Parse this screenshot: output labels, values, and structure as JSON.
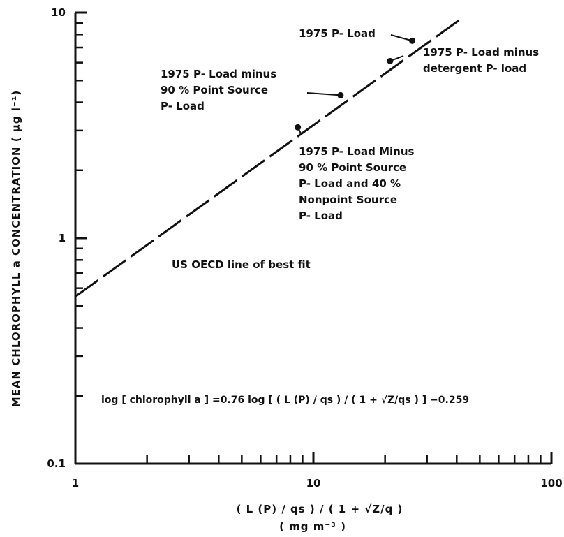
{
  "chart_data": {
    "type": "line",
    "x_scale": "log",
    "y_scale": "log",
    "xlim": [
      1,
      100
    ],
    "ylim": [
      0.1,
      10
    ],
    "grid": false,
    "x_tick_labels": [
      {
        "value": 1,
        "label": "1"
      },
      {
        "value": 10,
        "label": "10"
      },
      {
        "value": 100,
        "label": "100"
      }
    ],
    "y_tick_labels": [
      {
        "value": 0.1,
        "label": "0.1"
      },
      {
        "value": 1,
        "label": "1"
      },
      {
        "value": 10,
        "label": "10"
      }
    ],
    "ylabel": "MEAN CHLOROPHYLL a CONCENTRATION ( µg l⁻¹)",
    "xlabel_line1": "( L (P) / qs ) / ( 1 + √Z/q )",
    "xlabel_line2": "( mg m⁻³ )",
    "fit_line": {
      "label": "US OECD line of best fit",
      "equation": "log [ chlorophyll a ] =0.76 log [ ( L (P) / qs ) / ( 1 + √Z/qs ) ] −0.259",
      "slope": 0.76,
      "intercept": -0.259,
      "x_range": [
        1,
        42
      ]
    },
    "points": [
      {
        "x": 26,
        "y": 7.5,
        "label": [
          "1975 P- Load"
        ]
      },
      {
        "x": 21,
        "y": 6.1,
        "label": [
          "1975 P- Load minus",
          "detergent P- load"
        ]
      },
      {
        "x": 13,
        "y": 4.3,
        "label": [
          "1975 P- Load minus",
          "90 % Point Source",
          "P- Load"
        ]
      },
      {
        "x": 8.6,
        "y": 3.1,
        "label": [
          "1975 P- Load Minus",
          "90 % Point Source",
          "P- Load and 40 %",
          "Nonpoint Source",
          "P- Load"
        ]
      }
    ]
  }
}
